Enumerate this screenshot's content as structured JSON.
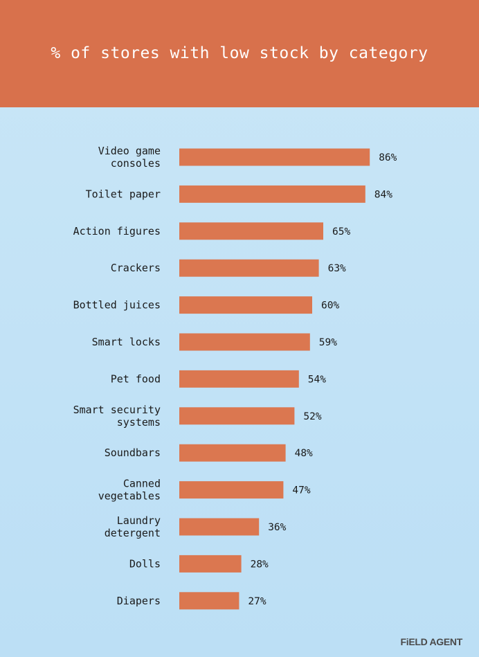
{
  "header": {
    "title": "% of stores with low stock by category"
  },
  "brand": {
    "logo_text": "FiELD AGENT"
  },
  "colors": {
    "header_bg": "#d8714c",
    "bar": "#db7750",
    "background": "#c9e6f7"
  },
  "chart_data": {
    "type": "bar",
    "orientation": "horizontal",
    "title": "% of stores with low stock by category",
    "categories": [
      [
        "Video game",
        "consoles"
      ],
      [
        "Toilet paper"
      ],
      [
        "Action figures"
      ],
      [
        "Crackers"
      ],
      [
        "Bottled juices"
      ],
      [
        "Smart locks"
      ],
      [
        "Pet food"
      ],
      [
        "Smart security",
        "systems"
      ],
      [
        "Soundbars"
      ],
      [
        "Canned",
        "vegetables"
      ],
      [
        "Laundry",
        "detergent"
      ],
      [
        "Dolls"
      ],
      [
        "Diapers"
      ]
    ],
    "values": [
      86,
      84,
      65,
      63,
      60,
      59,
      54,
      52,
      48,
      47,
      36,
      28,
      27
    ],
    "value_labels": [
      "86%",
      "84%",
      "65%",
      "63%",
      "60%",
      "59%",
      "54%",
      "52%",
      "48%",
      "47%",
      "36%",
      "28%",
      "27%"
    ],
    "xlim": [
      0,
      100
    ],
    "grid": false,
    "legend": "none"
  }
}
